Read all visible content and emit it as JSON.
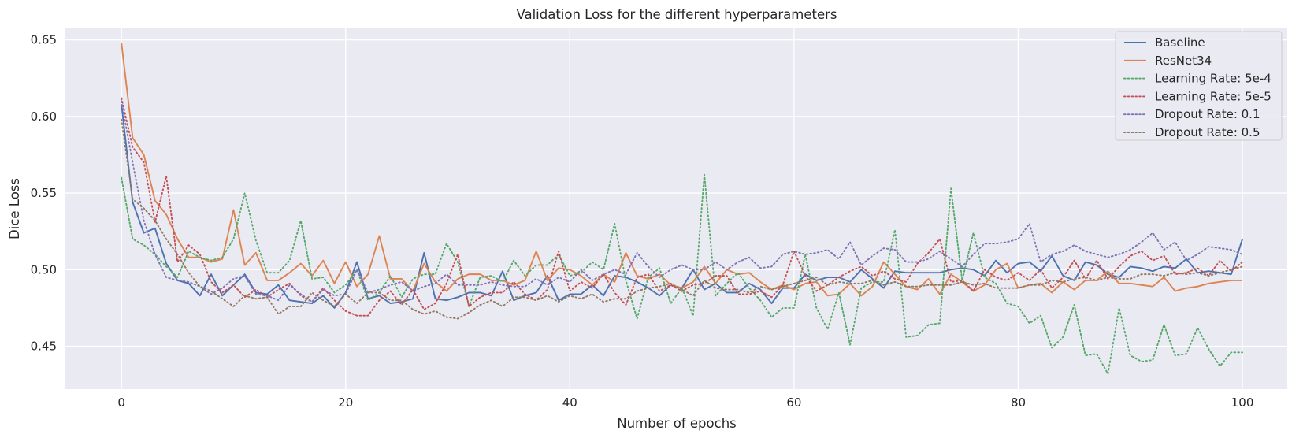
{
  "chart_data": {
    "type": "line",
    "title": "Validation Loss for the different hyperparameters",
    "xlabel": "Number of epochs",
    "ylabel": "Dice Loss",
    "xlim": [
      -5,
      104
    ],
    "ylim": [
      0.422,
      0.658
    ],
    "xticks": [
      0,
      20,
      40,
      60,
      80,
      100
    ],
    "yticks": [
      0.45,
      0.5,
      0.55,
      0.6,
      0.65
    ],
    "ytick_labels": [
      "0.45",
      "0.50",
      "0.55",
      "0.60",
      "0.65"
    ],
    "grid": true,
    "legend_position": "top-right",
    "series": [
      {
        "name": "Baseline",
        "color": "#4c72b0",
        "style": "solid",
        "values": [
          0.608,
          0.544,
          0.524,
          0.527,
          0.504,
          0.493,
          0.491,
          0.483,
          0.497,
          0.483,
          0.49,
          0.497,
          0.485,
          0.484,
          0.49,
          0.48,
          0.479,
          0.478,
          0.483,
          0.475,
          0.485,
          0.505,
          0.481,
          0.483,
          0.478,
          0.479,
          0.481,
          0.511,
          0.481,
          0.48,
          0.482,
          0.485,
          0.485,
          0.483,
          0.499,
          0.48,
          0.483,
          0.485,
          0.496,
          0.48,
          0.484,
          0.484,
          0.49,
          0.483,
          0.496,
          0.495,
          0.492,
          0.488,
          0.483,
          0.49,
          0.488,
          0.5,
          0.487,
          0.491,
          0.485,
          0.485,
          0.491,
          0.487,
          0.478,
          0.488,
          0.488,
          0.497,
          0.493,
          0.495,
          0.495,
          0.492,
          0.5,
          0.494,
          0.488,
          0.499,
          0.498,
          0.498,
          0.498,
          0.498,
          0.5,
          0.501,
          0.5,
          0.496,
          0.506,
          0.498,
          0.504,
          0.505,
          0.499,
          0.509,
          0.496,
          0.493,
          0.505,
          0.503,
          0.497,
          0.495,
          0.502,
          0.501,
          0.499,
          0.502,
          0.501,
          0.507,
          0.498,
          0.499,
          0.498,
          0.497,
          0.52
        ]
      },
      {
        "name": "ResNet34",
        "color": "#dd8452",
        "style": "solid",
        "values": [
          0.648,
          0.586,
          0.575,
          0.545,
          0.536,
          0.52,
          0.508,
          0.508,
          0.505,
          0.507,
          0.539,
          0.503,
          0.511,
          0.493,
          0.493,
          0.498,
          0.504,
          0.496,
          0.506,
          0.491,
          0.505,
          0.489,
          0.497,
          0.522,
          0.494,
          0.494,
          0.486,
          0.504,
          0.492,
          0.486,
          0.494,
          0.497,
          0.497,
          0.493,
          0.493,
          0.49,
          0.493,
          0.512,
          0.493,
          0.501,
          0.5,
          0.496,
          0.49,
          0.497,
          0.492,
          0.511,
          0.496,
          0.494,
          0.497,
          0.49,
          0.488,
          0.492,
          0.502,
          0.491,
          0.5,
          0.497,
          0.498,
          0.492,
          0.487,
          0.49,
          0.487,
          0.491,
          0.492,
          0.483,
          0.484,
          0.491,
          0.483,
          0.489,
          0.505,
          0.497,
          0.489,
          0.487,
          0.494,
          0.484,
          0.497,
          0.492,
          0.486,
          0.49,
          0.5,
          0.504,
          0.488,
          0.49,
          0.491,
          0.485,
          0.492,
          0.487,
          0.493,
          0.493,
          0.499,
          0.491,
          0.491,
          0.49,
          0.489,
          0.495,
          0.486,
          0.488,
          0.489,
          0.491,
          0.492,
          0.493,
          0.493
        ]
      },
      {
        "name": "Learning Rate: 5e-4",
        "color": "#55a868",
        "style": "dotted",
        "values": [
          0.56,
          0.52,
          0.516,
          0.51,
          0.502,
          0.495,
          0.512,
          0.508,
          0.506,
          0.508,
          0.52,
          0.55,
          0.519,
          0.498,
          0.498,
          0.506,
          0.532,
          0.494,
          0.495,
          0.485,
          0.49,
          0.5,
          0.48,
          0.485,
          0.496,
          0.482,
          0.494,
          0.497,
          0.497,
          0.517,
          0.505,
          0.476,
          0.495,
          0.496,
          0.492,
          0.506,
          0.496,
          0.503,
          0.503,
          0.51,
          0.496,
          0.498,
          0.505,
          0.5,
          0.53,
          0.493,
          0.468,
          0.495,
          0.501,
          0.478,
          0.488,
          0.47,
          0.562,
          0.483,
          0.491,
          0.498,
          0.488,
          0.48,
          0.469,
          0.475,
          0.475,
          0.51,
          0.475,
          0.461,
          0.485,
          0.451,
          0.488,
          0.492,
          0.492,
          0.526,
          0.456,
          0.457,
          0.464,
          0.465,
          0.553,
          0.493,
          0.524,
          0.495,
          0.491,
          0.478,
          0.476,
          0.465,
          0.47,
          0.449,
          0.456,
          0.477,
          0.444,
          0.445,
          0.432,
          0.475,
          0.444,
          0.44,
          0.441,
          0.464,
          0.444,
          0.445,
          0.462,
          0.448,
          0.437,
          0.446,
          0.446
        ]
      },
      {
        "name": "Learning Rate: 5e-5",
        "color": "#c44e52",
        "style": "dotted",
        "values": [
          0.612,
          0.58,
          0.57,
          0.531,
          0.561,
          0.505,
          0.516,
          0.51,
          0.492,
          0.485,
          0.49,
          0.482,
          0.487,
          0.482,
          0.487,
          0.491,
          0.483,
          0.479,
          0.488,
          0.48,
          0.473,
          0.47,
          0.47,
          0.48,
          0.486,
          0.477,
          0.487,
          0.474,
          0.478,
          0.491,
          0.51,
          0.476,
          0.482,
          0.485,
          0.485,
          0.492,
          0.484,
          0.48,
          0.487,
          0.512,
          0.486,
          0.492,
          0.488,
          0.497,
          0.485,
          0.477,
          0.495,
          0.497,
          0.486,
          0.49,
          0.486,
          0.49,
          0.491,
          0.496,
          0.496,
          0.484,
          0.484,
          0.486,
          0.482,
          0.49,
          0.512,
          0.496,
          0.486,
          0.49,
          0.495,
          0.499,
          0.502,
          0.496,
          0.499,
          0.494,
          0.492,
          0.504,
          0.511,
          0.52,
          0.492,
          0.493,
          0.486,
          0.5,
          0.495,
          0.493,
          0.498,
          0.493,
          0.5,
          0.488,
          0.495,
          0.506,
          0.494,
          0.506,
          0.494,
          0.502,
          0.509,
          0.512,
          0.506,
          0.509,
          0.497,
          0.498,
          0.501,
          0.496,
          0.506,
          0.499,
          0.505
        ]
      },
      {
        "name": "Dropout Rate: 0.1",
        "color": "#8172b3",
        "style": "dotted",
        "values": [
          0.61,
          0.57,
          0.532,
          0.51,
          0.495,
          0.493,
          0.492,
          0.489,
          0.484,
          0.488,
          0.494,
          0.496,
          0.484,
          0.483,
          0.48,
          0.49,
          0.484,
          0.479,
          0.487,
          0.483,
          0.484,
          0.5,
          0.485,
          0.487,
          0.49,
          0.492,
          0.486,
          0.489,
          0.491,
          0.497,
          0.49,
          0.49,
          0.49,
          0.492,
          0.49,
          0.489,
          0.489,
          0.494,
          0.49,
          0.495,
          0.492,
          0.5,
          0.493,
          0.497,
          0.5,
          0.497,
          0.511,
          0.502,
          0.495,
          0.5,
          0.503,
          0.5,
          0.5,
          0.505,
          0.5,
          0.505,
          0.508,
          0.501,
          0.502,
          0.51,
          0.512,
          0.51,
          0.511,
          0.513,
          0.507,
          0.518,
          0.503,
          0.509,
          0.514,
          0.513,
          0.505,
          0.505,
          0.507,
          0.512,
          0.507,
          0.502,
          0.51,
          0.517,
          0.517,
          0.518,
          0.52,
          0.53,
          0.505,
          0.51,
          0.512,
          0.516,
          0.512,
          0.51,
          0.508,
          0.51,
          0.513,
          0.518,
          0.524,
          0.513,
          0.518,
          0.506,
          0.51,
          0.515,
          0.514,
          0.513,
          0.51
        ]
      },
      {
        "name": "Dropout Rate: 0.5",
        "color": "#937860",
        "style": "dotted",
        "values": [
          0.598,
          0.546,
          0.54,
          0.532,
          0.52,
          0.51,
          0.498,
          0.489,
          0.486,
          0.481,
          0.476,
          0.483,
          0.481,
          0.482,
          0.471,
          0.476,
          0.476,
          0.485,
          0.48,
          0.476,
          0.484,
          0.478,
          0.485,
          0.485,
          0.48,
          0.48,
          0.474,
          0.471,
          0.473,
          0.469,
          0.468,
          0.472,
          0.477,
          0.48,
          0.476,
          0.482,
          0.482,
          0.48,
          0.483,
          0.479,
          0.483,
          0.481,
          0.484,
          0.479,
          0.481,
          0.481,
          0.486,
          0.488,
          0.489,
          0.491,
          0.487,
          0.483,
          0.493,
          0.488,
          0.487,
          0.487,
          0.485,
          0.489,
          0.487,
          0.489,
          0.491,
          0.493,
          0.495,
          0.49,
          0.492,
          0.491,
          0.491,
          0.493,
          0.49,
          0.492,
          0.489,
          0.489,
          0.49,
          0.49,
          0.49,
          0.492,
          0.49,
          0.491,
          0.488,
          0.488,
          0.488,
          0.49,
          0.49,
          0.493,
          0.492,
          0.494,
          0.495,
          0.493,
          0.495,
          0.494,
          0.494,
          0.497,
          0.497,
          0.496,
          0.498,
          0.497,
          0.498,
          0.496,
          0.498,
          0.5,
          0.502
        ]
      }
    ]
  }
}
